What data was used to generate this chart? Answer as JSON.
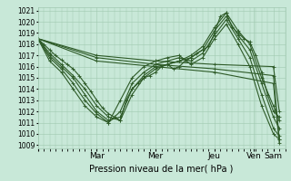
{
  "xlabel": "Pression niveau de la mer( hPa )",
  "bg_color": "#c8e8d8",
  "grid_color": "#a0c8b0",
  "line_color": "#2d5a27",
  "ylim": [
    1009,
    1021
  ],
  "yticks": [
    1009,
    1010,
    1011,
    1012,
    1013,
    1014,
    1015,
    1016,
    1017,
    1018,
    1019,
    1020,
    1021
  ],
  "day_tick_positions": [
    0,
    30,
    60,
    90,
    110,
    120
  ],
  "day_labels": [
    "",
    "Mar",
    "Mer",
    "Jeu",
    "Ven",
    "Sam"
  ],
  "xlim": [
    0,
    126
  ],
  "lines": [
    [
      0,
      1018.5,
      3,
      1018.0,
      6,
      1017.5,
      9,
      1017.0,
      12,
      1016.6,
      15,
      1016.2,
      18,
      1015.8,
      21,
      1015.2,
      24,
      1014.5,
      27,
      1013.8,
      30,
      1013.0,
      33,
      1012.3,
      36,
      1011.8,
      39,
      1011.5,
      42,
      1011.2,
      45,
      1013.0,
      48,
      1014.0,
      51,
      1014.5,
      54,
      1015.0,
      57,
      1015.2,
      60,
      1015.5,
      63,
      1016.0,
      66,
      1016.2,
      69,
      1015.8,
      72,
      1016.0,
      75,
      1016.5,
      78,
      1016.8,
      81,
      1017.2,
      84,
      1017.5,
      87,
      1017.8,
      90,
      1019.0,
      93,
      1020.5,
      96,
      1020.8,
      99,
      1019.5,
      102,
      1019.0,
      105,
      1018.5,
      108,
      1018.2,
      111,
      1017.0,
      114,
      1015.5,
      117,
      1013.5,
      120,
      1012.0,
      123,
      1011.5
    ],
    [
      0,
      1018.5,
      6,
      1017.2,
      12,
      1016.2,
      18,
      1015.2,
      24,
      1014.0,
      30,
      1012.5,
      36,
      1011.5,
      42,
      1011.2,
      48,
      1013.5,
      54,
      1015.0,
      60,
      1015.8,
      66,
      1016.2,
      72,
      1016.5,
      78,
      1017.0,
      84,
      1017.8,
      90,
      1019.5,
      96,
      1020.8,
      102,
      1019.2,
      108,
      1018.0,
      114,
      1015.0,
      120,
      1012.5,
      123,
      1011.2
    ],
    [
      0,
      1018.5,
      6,
      1017.0,
      12,
      1016.0,
      18,
      1015.0,
      24,
      1013.5,
      30,
      1012.0,
      36,
      1011.2,
      42,
      1011.5,
      48,
      1014.0,
      54,
      1015.2,
      60,
      1016.0,
      66,
      1016.2,
      72,
      1016.5,
      78,
      1016.8,
      84,
      1017.5,
      90,
      1019.2,
      96,
      1020.5,
      102,
      1018.8,
      108,
      1017.5,
      114,
      1014.5,
      120,
      1011.5,
      123,
      1010.5
    ],
    [
      0,
      1018.5,
      6,
      1016.8,
      12,
      1015.8,
      18,
      1014.5,
      24,
      1013.0,
      30,
      1011.8,
      36,
      1011.0,
      42,
      1012.0,
      48,
      1014.5,
      54,
      1015.5,
      60,
      1016.2,
      66,
      1016.5,
      72,
      1016.8,
      78,
      1016.5,
      84,
      1017.2,
      90,
      1018.8,
      96,
      1020.2,
      102,
      1018.5,
      108,
      1016.8,
      114,
      1013.5,
      120,
      1010.5,
      123,
      1009.8
    ],
    [
      0,
      1018.5,
      6,
      1016.5,
      12,
      1015.5,
      18,
      1014.0,
      24,
      1012.5,
      30,
      1011.5,
      36,
      1011.0,
      42,
      1013.0,
      48,
      1015.0,
      54,
      1016.0,
      60,
      1016.5,
      66,
      1016.8,
      72,
      1017.0,
      78,
      1016.2,
      84,
      1016.8,
      90,
      1018.5,
      96,
      1019.8,
      102,
      1018.0,
      108,
      1016.0,
      114,
      1012.5,
      120,
      1010.0,
      123,
      1009.5
    ],
    [
      0,
      1018.5,
      30,
      1017.0,
      60,
      1016.5,
      90,
      1016.2,
      120,
      1016.0,
      123,
      1012.0
    ],
    [
      0,
      1018.5,
      30,
      1016.8,
      60,
      1016.2,
      90,
      1015.8,
      120,
      1015.2,
      123,
      1009.5
    ],
    [
      0,
      1018.5,
      30,
      1016.5,
      60,
      1016.0,
      90,
      1015.5,
      120,
      1014.5,
      123,
      1009.2
    ]
  ],
  "marker": "+",
  "markersize": 2.5,
  "linewidth": 0.8
}
